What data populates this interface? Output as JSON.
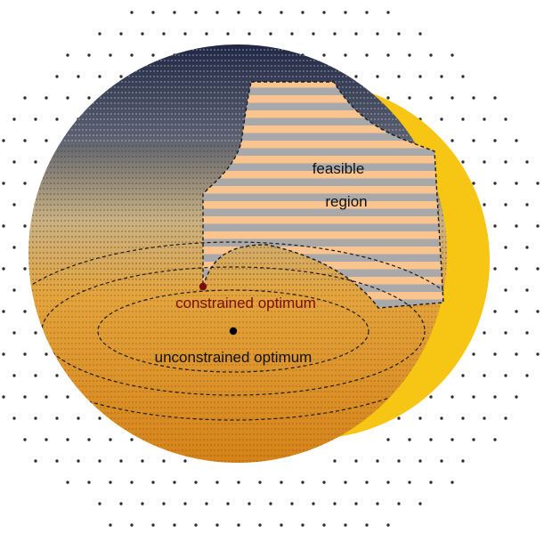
{
  "diagram": {
    "labels": {
      "feasible_line1": "feasible",
      "feasible_line2": "region",
      "constrained": "constrained optimum",
      "unconstrained": "unconstrained optimum"
    },
    "colors": {
      "background": "#ffffff",
      "crescent": "#f7c513",
      "sphere_top": "#27304f",
      "sphere_bottom": "#d9861a",
      "contour": "#1b1b1b",
      "feasible_stripe_a": "#f9c48e",
      "feasible_stripe_b": "#a9a9ab",
      "constrained_point": "#7a0d0d",
      "constrained_text": "#7a0d0d",
      "unconstrained_point": "#000000",
      "dot": "#333333"
    }
  }
}
